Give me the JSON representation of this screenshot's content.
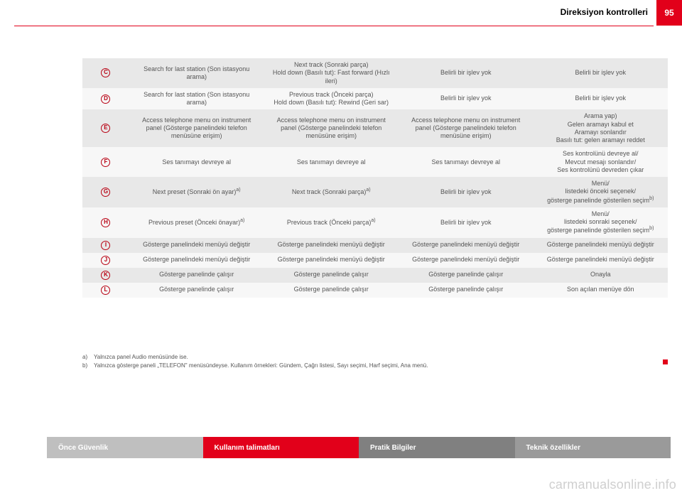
{
  "page": {
    "number": "95",
    "section_title": "Direksiyon kontrolleri"
  },
  "table": {
    "rows": [
      {
        "letter": "C",
        "bg": "odd",
        "cells": [
          "Search for last station (Son istasyonu arama)",
          "Next track (Sonraki parça)\nHold down (Basılı tut): Fast forward (Hızlı ileri)",
          "Belirli bir işlev yok",
          "Belirli bir işlev yok"
        ]
      },
      {
        "letter": "D",
        "bg": "even",
        "cells": [
          "Search for last station (Son istasyonu arama)",
          "Previous track (Önceki parça)\nHold down (Basılı tut): Rewind (Geri sar)",
          "Belirli bir işlev yok",
          "Belirli bir işlev yok"
        ]
      },
      {
        "letter": "E",
        "bg": "odd",
        "cells": [
          "Access telephone menu on instrument panel (Gösterge panelindeki telefon menüsüne erişim)",
          "Access telephone menu on instrument panel (Gösterge panelindeki telefon menüsüne erişim)",
          "Access telephone menu on instrument panel (Gösterge panelindeki telefon menüsüne erişim)",
          "Arama yap)\nGelen aramayı kabul et\nAramayı sonlandır\nBasılı tut: gelen aramayı reddet"
        ]
      },
      {
        "letter": "F",
        "bg": "even",
        "cells": [
          "Ses tanımayı devreye al",
          "Ses tanımayı devreye al",
          "Ses tanımayı devreye al",
          "Ses kontrolünü devreye al/\nMevcut mesajı sonlandır/\nSes kontrolünü devreden çıkar"
        ]
      },
      {
        "letter": "G",
        "bg": "odd",
        "sup": [
          "a)",
          "a)",
          null,
          "b)"
        ],
        "cells": [
          "Next preset (Sonraki ön ayar)",
          "Next track (Sonraki parça)",
          "Belirli bir işlev yok",
          "Menü/\nlistedeki önceki seçenek/\ngösterge panelinde gösterilen seçim"
        ]
      },
      {
        "letter": "H",
        "bg": "even",
        "sup": [
          "a)",
          "a)",
          null,
          "b)"
        ],
        "cells": [
          "Previous preset (Önceki önayar)",
          "Previous track (Önceki parça)",
          "Belirli bir işlev yok",
          "Menü/\nlistedeki sonraki seçenek/\ngösterge panelinde gösterilen seçim"
        ]
      },
      {
        "letter": "I",
        "bg": "odd",
        "cells": [
          "Gösterge panelindeki menüyü değiştir",
          "Gösterge panelindeki menüyü değiştir",
          "Gösterge panelindeki menüyü değiştir",
          "Gösterge panelindeki menüyü değiştir"
        ]
      },
      {
        "letter": "J",
        "bg": "even",
        "cells": [
          "Gösterge panelindeki menüyü değiştir",
          "Gösterge panelindeki menüyü değiştir",
          "Gösterge panelindeki menüyü değiştir",
          "Gösterge panelindeki menüyü değiştir"
        ]
      },
      {
        "letter": "K",
        "bg": "odd",
        "cells": [
          "Gösterge panelinde çalışır",
          "Gösterge panelinde çalışır",
          "Gösterge panelinde çalışır",
          "Onayla"
        ]
      },
      {
        "letter": "L",
        "bg": "even",
        "cells": [
          "Gösterge panelinde çalışır",
          "Gösterge panelinde çalışır",
          "Gösterge panelinde çalışır",
          "Son açılan menüye dön"
        ]
      }
    ]
  },
  "footnotes": {
    "a": "Yalnızca panel Audio menüsünde ise.",
    "b": "Yalnızca gösterge paneli „TELEFON\" menüsündeyse. Kullanım örnekleri: Gündem, Çağrı listesi, Sayı seçimi, Harf seçimi, Ana menü."
  },
  "footer": {
    "tabs": [
      {
        "label": "Önce Güvenlik",
        "style": "tab-grey"
      },
      {
        "label": "Kullanım talimatları",
        "style": "tab-red"
      },
      {
        "label": "Pratik Bilgiler",
        "style": "tab-dark"
      },
      {
        "label": "Teknik özellikler",
        "style": "tab-dark2"
      }
    ]
  },
  "watermark": "carmanualsonline.info"
}
